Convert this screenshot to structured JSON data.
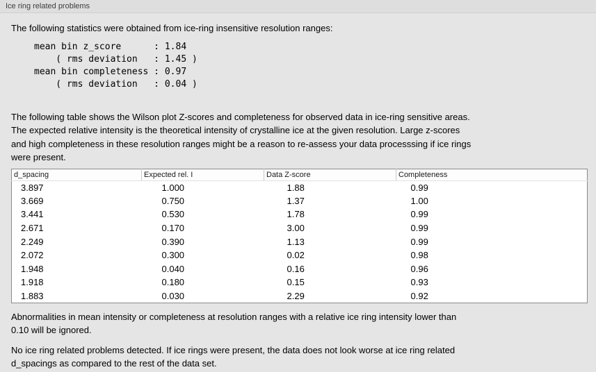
{
  "panel": {
    "title": "Ice ring related problems"
  },
  "stats": {
    "intro": "The following statistics were obtained from ice-ring insensitive resolution ranges:",
    "block": "mean bin z_score      : 1.84\n    ( rms deviation   : 1.45 )\nmean bin completeness : 0.97\n    ( rms deviation   : 0.04 )"
  },
  "table_intro": "The following table shows the Wilson plot Z-scores and completeness for observed data in ice-ring sensitive areas.\nThe expected relative intensity is the theoretical intensity of crystalline ice at the given resolution. Large z-scores\nand high completeness in these resolution ranges might be a reason to re-assess your data processsing if ice rings\nwere present.",
  "table": {
    "headers": [
      "d_spacing",
      "Expected rel. I",
      "Data Z-score",
      "Completeness"
    ],
    "rows": [
      [
        "3.897",
        "1.000",
        "1.88",
        "0.99"
      ],
      [
        "3.669",
        "0.750",
        "1.37",
        "1.00"
      ],
      [
        "3.441",
        "0.530",
        "1.78",
        "0.99"
      ],
      [
        "2.671",
        "0.170",
        "3.00",
        "0.99"
      ],
      [
        "2.249",
        "0.390",
        "1.13",
        "0.99"
      ],
      [
        "2.072",
        "0.300",
        "0.02",
        "0.98"
      ],
      [
        "1.948",
        "0.040",
        "0.16",
        "0.96"
      ],
      [
        "1.918",
        "0.180",
        "0.15",
        "0.93"
      ],
      [
        "1.883",
        "0.030",
        "2.29",
        "0.92"
      ]
    ]
  },
  "notes": {
    "ignore_note": "Abnormalities in mean intensity or completeness at resolution ranges with a relative ice ring intensity lower than\n0.10 will be ignored.",
    "conclusion": "No ice ring related problems detected. If ice rings were present, the data does not look worse at ice ring related\nd_spacings as compared to the rest of the data set."
  }
}
